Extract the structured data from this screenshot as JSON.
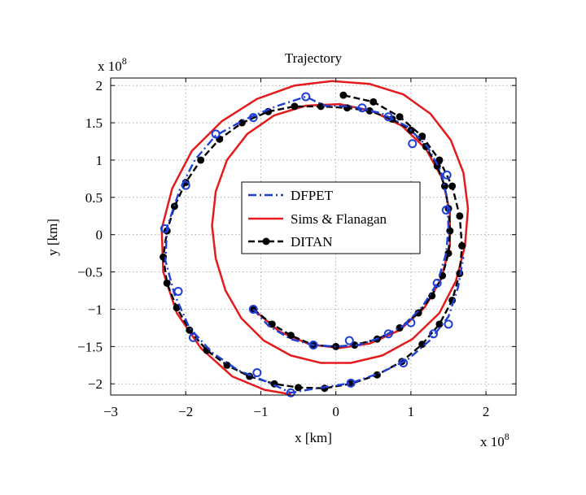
{
  "chart_data": {
    "type": "line",
    "title": "Trajectory",
    "xlabel": "x [km]",
    "ylabel": "y [km]",
    "x_multiplier_label": "x 10",
    "x_multiplier_exp": "8",
    "y_multiplier_label": "x 10",
    "y_multiplier_exp": "8",
    "xlim": [
      -3,
      2.4
    ],
    "ylim": [
      -2.15,
      2.1
    ],
    "xticks": [
      -3,
      -2,
      -1,
      0,
      1,
      2
    ],
    "yticks": [
      -2,
      -1.5,
      -1,
      -0.5,
      0,
      0.5,
      1,
      1.5,
      2
    ],
    "xtick_labels": [
      "−3",
      "−2",
      "−1",
      "0",
      "1",
      "2"
    ],
    "ytick_labels": [
      "−2",
      "−1.5",
      "−1",
      "−0.5",
      "0",
      "0.5",
      "1",
      "1.5",
      "2"
    ],
    "grid": true,
    "legend_position": "center",
    "series": [
      {
        "name": "DFPET",
        "color": "#1f3fd6",
        "line_style": "dash-dot",
        "marker": "open-circle",
        "markers": [
          [
            -1.1,
            -1.0
          ],
          [
            -0.3,
            -1.48
          ],
          [
            0.18,
            -1.42
          ],
          [
            0.7,
            -1.33
          ],
          [
            1.0,
            -1.18
          ],
          [
            1.35,
            -0.65
          ],
          [
            1.47,
            0.33
          ],
          [
            1.48,
            0.8
          ],
          [
            1.02,
            1.22
          ],
          [
            0.7,
            1.58
          ],
          [
            0.35,
            1.7
          ],
          [
            -0.4,
            1.85
          ],
          [
            -1.1,
            1.57
          ],
          [
            -1.6,
            1.35
          ],
          [
            -2.0,
            0.66
          ],
          [
            -2.28,
            0.08
          ],
          [
            -2.1,
            -0.76
          ],
          [
            -1.9,
            -1.38
          ],
          [
            -1.05,
            -1.85
          ],
          [
            -0.6,
            -2.12
          ],
          [
            0.2,
            -1.99
          ],
          [
            0.9,
            -1.72
          ],
          [
            1.3,
            -1.33
          ],
          [
            1.5,
            -1.2
          ]
        ],
        "points": [
          [
            -1.1,
            -1.0
          ],
          [
            -0.9,
            -1.22
          ],
          [
            -0.6,
            -1.4
          ],
          [
            -0.3,
            -1.48
          ],
          [
            0.0,
            -1.5
          ],
          [
            0.3,
            -1.48
          ],
          [
            0.6,
            -1.38
          ],
          [
            0.9,
            -1.22
          ],
          [
            1.15,
            -0.97
          ],
          [
            1.35,
            -0.65
          ],
          [
            1.47,
            -0.25
          ],
          [
            1.5,
            0.1
          ],
          [
            1.48,
            0.5
          ],
          [
            1.4,
            0.85
          ],
          [
            1.22,
            1.18
          ],
          [
            0.95,
            1.45
          ],
          [
            0.6,
            1.63
          ],
          [
            0.2,
            1.72
          ],
          [
            -0.15,
            1.73
          ],
          [
            -0.4,
            1.85
          ],
          [
            -0.8,
            1.72
          ],
          [
            -1.2,
            1.55
          ],
          [
            -1.6,
            1.33
          ],
          [
            -1.88,
            1.0
          ],
          [
            -2.08,
            0.6
          ],
          [
            -2.25,
            0.1
          ],
          [
            -2.27,
            -0.35
          ],
          [
            -2.15,
            -0.8
          ],
          [
            -1.95,
            -1.25
          ],
          [
            -1.65,
            -1.58
          ],
          [
            -1.3,
            -1.82
          ],
          [
            -0.9,
            -1.98
          ],
          [
            -0.6,
            -2.12
          ],
          [
            -0.25,
            -2.06
          ],
          [
            0.2,
            -1.99
          ],
          [
            0.6,
            -1.85
          ],
          [
            0.95,
            -1.68
          ],
          [
            1.25,
            -1.42
          ],
          [
            1.5,
            -1.1
          ],
          [
            1.63,
            -0.7
          ],
          [
            1.7,
            -0.3
          ]
        ]
      },
      {
        "name": "Sims & Flanagan",
        "color": "#e41a1c",
        "line_style": "solid",
        "marker": "none",
        "points": [
          [
            -1.1,
            -1.0
          ],
          [
            -0.75,
            -1.3
          ],
          [
            -0.35,
            -1.47
          ],
          [
            0.05,
            -1.52
          ],
          [
            0.45,
            -1.46
          ],
          [
            0.85,
            -1.28
          ],
          [
            1.18,
            -0.98
          ],
          [
            1.4,
            -0.6
          ],
          [
            1.52,
            -0.15
          ],
          [
            1.52,
            0.3
          ],
          [
            1.42,
            0.75
          ],
          [
            1.2,
            1.15
          ],
          [
            0.88,
            1.46
          ],
          [
            0.48,
            1.66
          ],
          [
            0.05,
            1.75
          ],
          [
            -0.4,
            1.73
          ],
          [
            -0.82,
            1.6
          ],
          [
            -1.18,
            1.35
          ],
          [
            -1.45,
            1.0
          ],
          [
            -1.6,
            0.58
          ],
          [
            -1.65,
            0.12
          ],
          [
            -1.6,
            -0.32
          ],
          [
            -1.47,
            -0.75
          ],
          [
            -1.26,
            -1.12
          ],
          [
            -0.96,
            -1.42
          ],
          [
            -0.6,
            -1.62
          ],
          [
            -0.2,
            -1.72
          ],
          [
            0.2,
            -1.72
          ],
          [
            0.62,
            -1.62
          ],
          [
            1.02,
            -1.4
          ],
          [
            1.38,
            -1.05
          ],
          [
            1.6,
            -0.62
          ],
          [
            1.72,
            -0.15
          ],
          [
            1.76,
            0.35
          ],
          [
            1.7,
            0.83
          ],
          [
            1.53,
            1.27
          ],
          [
            1.26,
            1.62
          ],
          [
            0.9,
            1.88
          ],
          [
            0.45,
            2.02
          ],
          [
            -0.05,
            2.06
          ],
          [
            -0.55,
            2.0
          ],
          [
            -1.05,
            1.82
          ],
          [
            -1.52,
            1.52
          ],
          [
            -1.92,
            1.12
          ],
          [
            -2.18,
            0.62
          ],
          [
            -2.32,
            0.08
          ],
          [
            -2.3,
            -0.5
          ],
          [
            -2.12,
            -1.05
          ],
          [
            -1.8,
            -1.52
          ],
          [
            -1.38,
            -1.9
          ],
          [
            -0.95,
            -2.08
          ],
          [
            -0.6,
            -2.14
          ]
        ]
      },
      {
        "name": "DITAN",
        "color": "#000000",
        "line_style": "dashed",
        "marker": "filled-circle",
        "points": [
          [
            -1.1,
            -1.0
          ],
          [
            -0.85,
            -1.2
          ],
          [
            -0.6,
            -1.35
          ],
          [
            -0.3,
            -1.48
          ],
          [
            0.0,
            -1.5
          ],
          [
            0.25,
            -1.48
          ],
          [
            0.55,
            -1.4
          ],
          [
            0.85,
            -1.25
          ],
          [
            1.1,
            -1.05
          ],
          [
            1.28,
            -0.82
          ],
          [
            1.42,
            -0.55
          ],
          [
            1.5,
            -0.25
          ],
          [
            1.52,
            0.05
          ],
          [
            1.5,
            0.35
          ],
          [
            1.45,
            0.65
          ],
          [
            1.35,
            0.92
          ],
          [
            1.2,
            1.18
          ],
          [
            1.0,
            1.4
          ],
          [
            0.75,
            1.55
          ],
          [
            0.45,
            1.66
          ],
          [
            0.15,
            1.7
          ],
          [
            -0.2,
            1.72
          ],
          [
            -0.55,
            1.72
          ],
          [
            -0.9,
            1.65
          ],
          [
            -1.25,
            1.5
          ],
          [
            -1.55,
            1.28
          ],
          [
            -1.8,
            1.0
          ],
          [
            -2.0,
            0.7
          ],
          [
            -2.15,
            0.38
          ],
          [
            -2.25,
            0.05
          ],
          [
            -2.3,
            -0.3
          ],
          [
            -2.25,
            -0.65
          ],
          [
            -2.12,
            -0.98
          ],
          [
            -1.95,
            -1.28
          ],
          [
            -1.72,
            -1.55
          ],
          [
            -1.45,
            -1.75
          ],
          [
            -1.15,
            -1.9
          ],
          [
            -0.82,
            -2.0
          ],
          [
            -0.5,
            -2.05
          ],
          [
            -0.15,
            -2.06
          ],
          [
            0.2,
            -2.0
          ],
          [
            0.55,
            -1.88
          ],
          [
            0.88,
            -1.7
          ],
          [
            1.15,
            -1.47
          ],
          [
            1.38,
            -1.2
          ],
          [
            1.55,
            -0.88
          ],
          [
            1.65,
            -0.52
          ],
          [
            1.68,
            -0.15
          ],
          [
            1.65,
            0.25
          ],
          [
            1.55,
            0.65
          ],
          [
            1.38,
            1.0
          ],
          [
            1.15,
            1.32
          ],
          [
            0.85,
            1.58
          ],
          [
            0.5,
            1.78
          ],
          [
            0.1,
            1.87
          ]
        ]
      }
    ]
  }
}
